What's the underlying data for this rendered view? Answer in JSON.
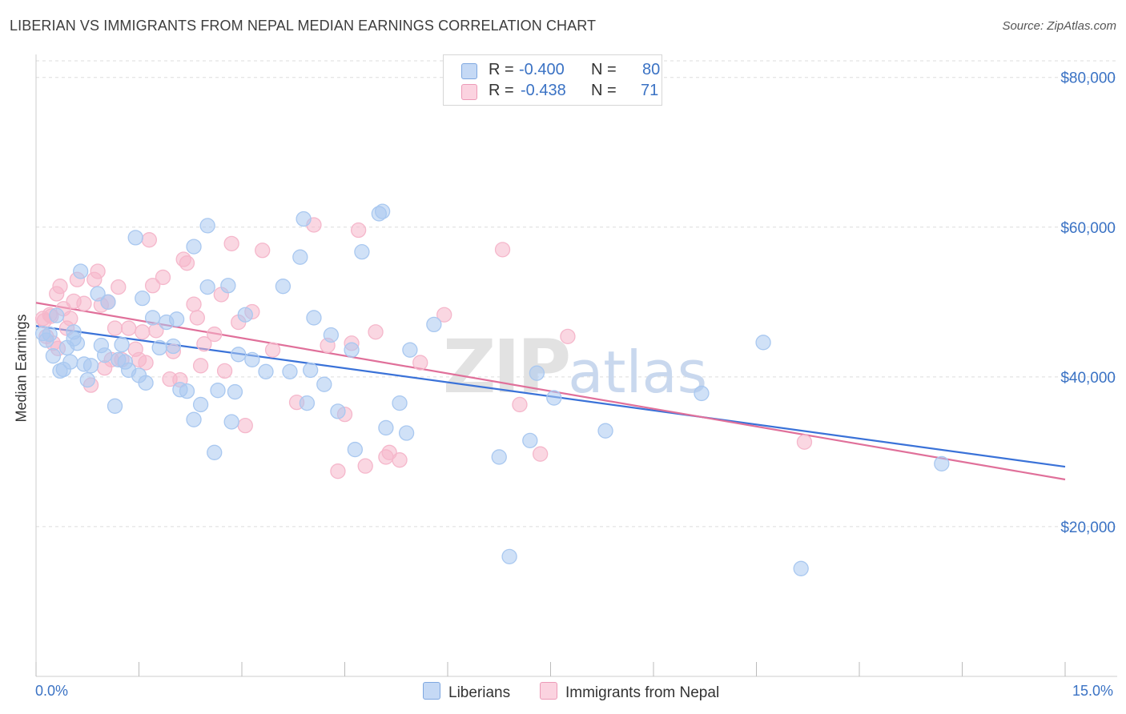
{
  "title": "LIBERIAN VS IMMIGRANTS FROM NEPAL MEDIAN EARNINGS CORRELATION CHART",
  "source": "Source: ZipAtlas.com",
  "watermark": "ZIPatlas",
  "legend": {
    "rows": [
      {
        "r_label": "R =",
        "r_value": "-0.400",
        "n_label": "N =",
        "n_value": "80",
        "color": "#a9c8f0"
      },
      {
        "r_label": "R =",
        "r_value": "-0.438",
        "n_label": "N =",
        "n_value": "71",
        "color": "#f5b7cb"
      }
    ]
  },
  "bottom_legend": [
    "Liberians",
    "Immigrants from Nepal"
  ],
  "chart_data": {
    "type": "scatter",
    "title": "LIBERIAN VS IMMIGRANTS FROM NEPAL MEDIAN EARNINGS CORRELATION CHART",
    "xlabel": "",
    "ylabel": "Median Earnings",
    "x_tick_labels": [
      "0.0%",
      "15.0%"
    ],
    "y_tick_labels": [
      "$20,000",
      "$40,000",
      "$60,000",
      "$80,000"
    ],
    "y_ticks": [
      20000,
      40000,
      60000,
      80000
    ],
    "xlim": [
      0,
      15
    ],
    "ylim": [
      0,
      82000
    ],
    "grid": true,
    "legend_position": "top-center",
    "series": [
      {
        "name": "Liberians",
        "color": "#3a72d8",
        "fill": "#a9c8f0",
        "points": [
          [
            0.1,
            45800
          ],
          [
            0.15,
            44900
          ],
          [
            0.25,
            42800
          ],
          [
            0.3,
            48200
          ],
          [
            0.35,
            40800
          ],
          [
            0.45,
            43900
          ],
          [
            0.5,
            42000
          ],
          [
            0.55,
            45100
          ],
          [
            0.6,
            44500
          ],
          [
            0.65,
            54100
          ],
          [
            0.7,
            41700
          ],
          [
            0.75,
            39600
          ],
          [
            0.8,
            41500
          ],
          [
            0.9,
            51100
          ],
          [
            0.95,
            44200
          ],
          [
            1.0,
            42900
          ],
          [
            1.05,
            50000
          ],
          [
            1.15,
            36100
          ],
          [
            1.2,
            42300
          ],
          [
            1.25,
            44300
          ],
          [
            1.35,
            40900
          ],
          [
            1.45,
            58600
          ],
          [
            1.5,
            40200
          ],
          [
            1.55,
            50500
          ],
          [
            1.6,
            39200
          ],
          [
            1.7,
            47900
          ],
          [
            1.8,
            43900
          ],
          [
            1.9,
            47300
          ],
          [
            2.0,
            44100
          ],
          [
            2.05,
            47700
          ],
          [
            2.1,
            38300
          ],
          [
            2.2,
            38100
          ],
          [
            2.3,
            57400
          ],
          [
            2.3,
            34300
          ],
          [
            2.4,
            36300
          ],
          [
            2.5,
            60200
          ],
          [
            2.5,
            52000
          ],
          [
            2.6,
            29900
          ],
          [
            2.65,
            38200
          ],
          [
            2.8,
            52200
          ],
          [
            2.85,
            34000
          ],
          [
            2.9,
            38000
          ],
          [
            2.95,
            43000
          ],
          [
            3.05,
            48300
          ],
          [
            3.15,
            42300
          ],
          [
            3.35,
            40700
          ],
          [
            3.6,
            52100
          ],
          [
            3.7,
            40700
          ],
          [
            3.85,
            56000
          ],
          [
            3.9,
            61100
          ],
          [
            3.95,
            36500
          ],
          [
            4.0,
            40900
          ],
          [
            4.05,
            47900
          ],
          [
            4.2,
            39000
          ],
          [
            4.3,
            45600
          ],
          [
            4.4,
            35400
          ],
          [
            4.6,
            43600
          ],
          [
            4.65,
            30300
          ],
          [
            4.75,
            56700
          ],
          [
            5.0,
            61800
          ],
          [
            5.05,
            62100
          ],
          [
            5.1,
            33200
          ],
          [
            5.3,
            36500
          ],
          [
            5.4,
            32500
          ],
          [
            5.45,
            43600
          ],
          [
            5.8,
            47000
          ],
          [
            6.75,
            29300
          ],
          [
            6.9,
            16000
          ],
          [
            7.2,
            31500
          ],
          [
            7.3,
            40500
          ],
          [
            7.55,
            37200
          ],
          [
            8.3,
            32800
          ],
          [
            9.7,
            37800
          ],
          [
            10.6,
            44600
          ],
          [
            11.15,
            14400
          ],
          [
            13.2,
            28400
          ],
          [
            0.2,
            45700
          ],
          [
            0.4,
            41000
          ],
          [
            1.3,
            42000
          ],
          [
            0.55,
            46000
          ]
        ],
        "trend": {
          "x": [
            0.0,
            15.0
          ],
          "y": [
            46800,
            28000
          ]
        }
      },
      {
        "name": "Immigrants from Nepal",
        "color": "#e0709a",
        "fill": "#f5b7cb",
        "points": [
          [
            0.1,
            47800
          ],
          [
            0.15,
            45400
          ],
          [
            0.2,
            48300
          ],
          [
            0.25,
            44500
          ],
          [
            0.3,
            51100
          ],
          [
            0.35,
            52100
          ],
          [
            0.4,
            49100
          ],
          [
            0.45,
            46500
          ],
          [
            0.5,
            47800
          ],
          [
            0.55,
            50100
          ],
          [
            0.6,
            53000
          ],
          [
            0.7,
            49800
          ],
          [
            0.8,
            38900
          ],
          [
            0.85,
            53000
          ],
          [
            0.9,
            54100
          ],
          [
            0.95,
            49600
          ],
          [
            1.0,
            41200
          ],
          [
            1.05,
            50000
          ],
          [
            1.1,
            42300
          ],
          [
            1.15,
            46500
          ],
          [
            1.2,
            52000
          ],
          [
            1.25,
            42300
          ],
          [
            1.35,
            46500
          ],
          [
            1.45,
            43700
          ],
          [
            1.5,
            42300
          ],
          [
            1.55,
            46000
          ],
          [
            1.6,
            41900
          ],
          [
            1.65,
            58300
          ],
          [
            1.7,
            52200
          ],
          [
            1.75,
            46200
          ],
          [
            1.85,
            53300
          ],
          [
            1.95,
            39700
          ],
          [
            2.0,
            43400
          ],
          [
            2.1,
            39600
          ],
          [
            2.15,
            55700
          ],
          [
            2.2,
            55200
          ],
          [
            2.3,
            49700
          ],
          [
            2.35,
            47900
          ],
          [
            2.4,
            41500
          ],
          [
            2.45,
            44400
          ],
          [
            2.6,
            45700
          ],
          [
            2.7,
            51000
          ],
          [
            2.75,
            40800
          ],
          [
            2.85,
            57800
          ],
          [
            2.95,
            47300
          ],
          [
            3.05,
            33500
          ],
          [
            3.15,
            48700
          ],
          [
            3.3,
            56900
          ],
          [
            3.45,
            43600
          ],
          [
            3.8,
            36600
          ],
          [
            4.05,
            60300
          ],
          [
            4.25,
            44200
          ],
          [
            4.4,
            27400
          ],
          [
            4.5,
            35000
          ],
          [
            4.6,
            44500
          ],
          [
            4.7,
            59600
          ],
          [
            4.8,
            28100
          ],
          [
            4.95,
            46000
          ],
          [
            5.1,
            29300
          ],
          [
            5.15,
            29900
          ],
          [
            5.3,
            28900
          ],
          [
            5.6,
            41900
          ],
          [
            5.95,
            48300
          ],
          [
            6.8,
            57000
          ],
          [
            7.05,
            36300
          ],
          [
            7.35,
            29700
          ],
          [
            7.75,
            45400
          ],
          [
            11.2,
            31300
          ],
          [
            0.12,
            47500
          ],
          [
            0.22,
            48100
          ],
          [
            0.32,
            43800
          ]
        ],
        "trend": {
          "x": [
            0.0,
            15.0
          ],
          "y": [
            49900,
            26300
          ]
        }
      }
    ]
  }
}
